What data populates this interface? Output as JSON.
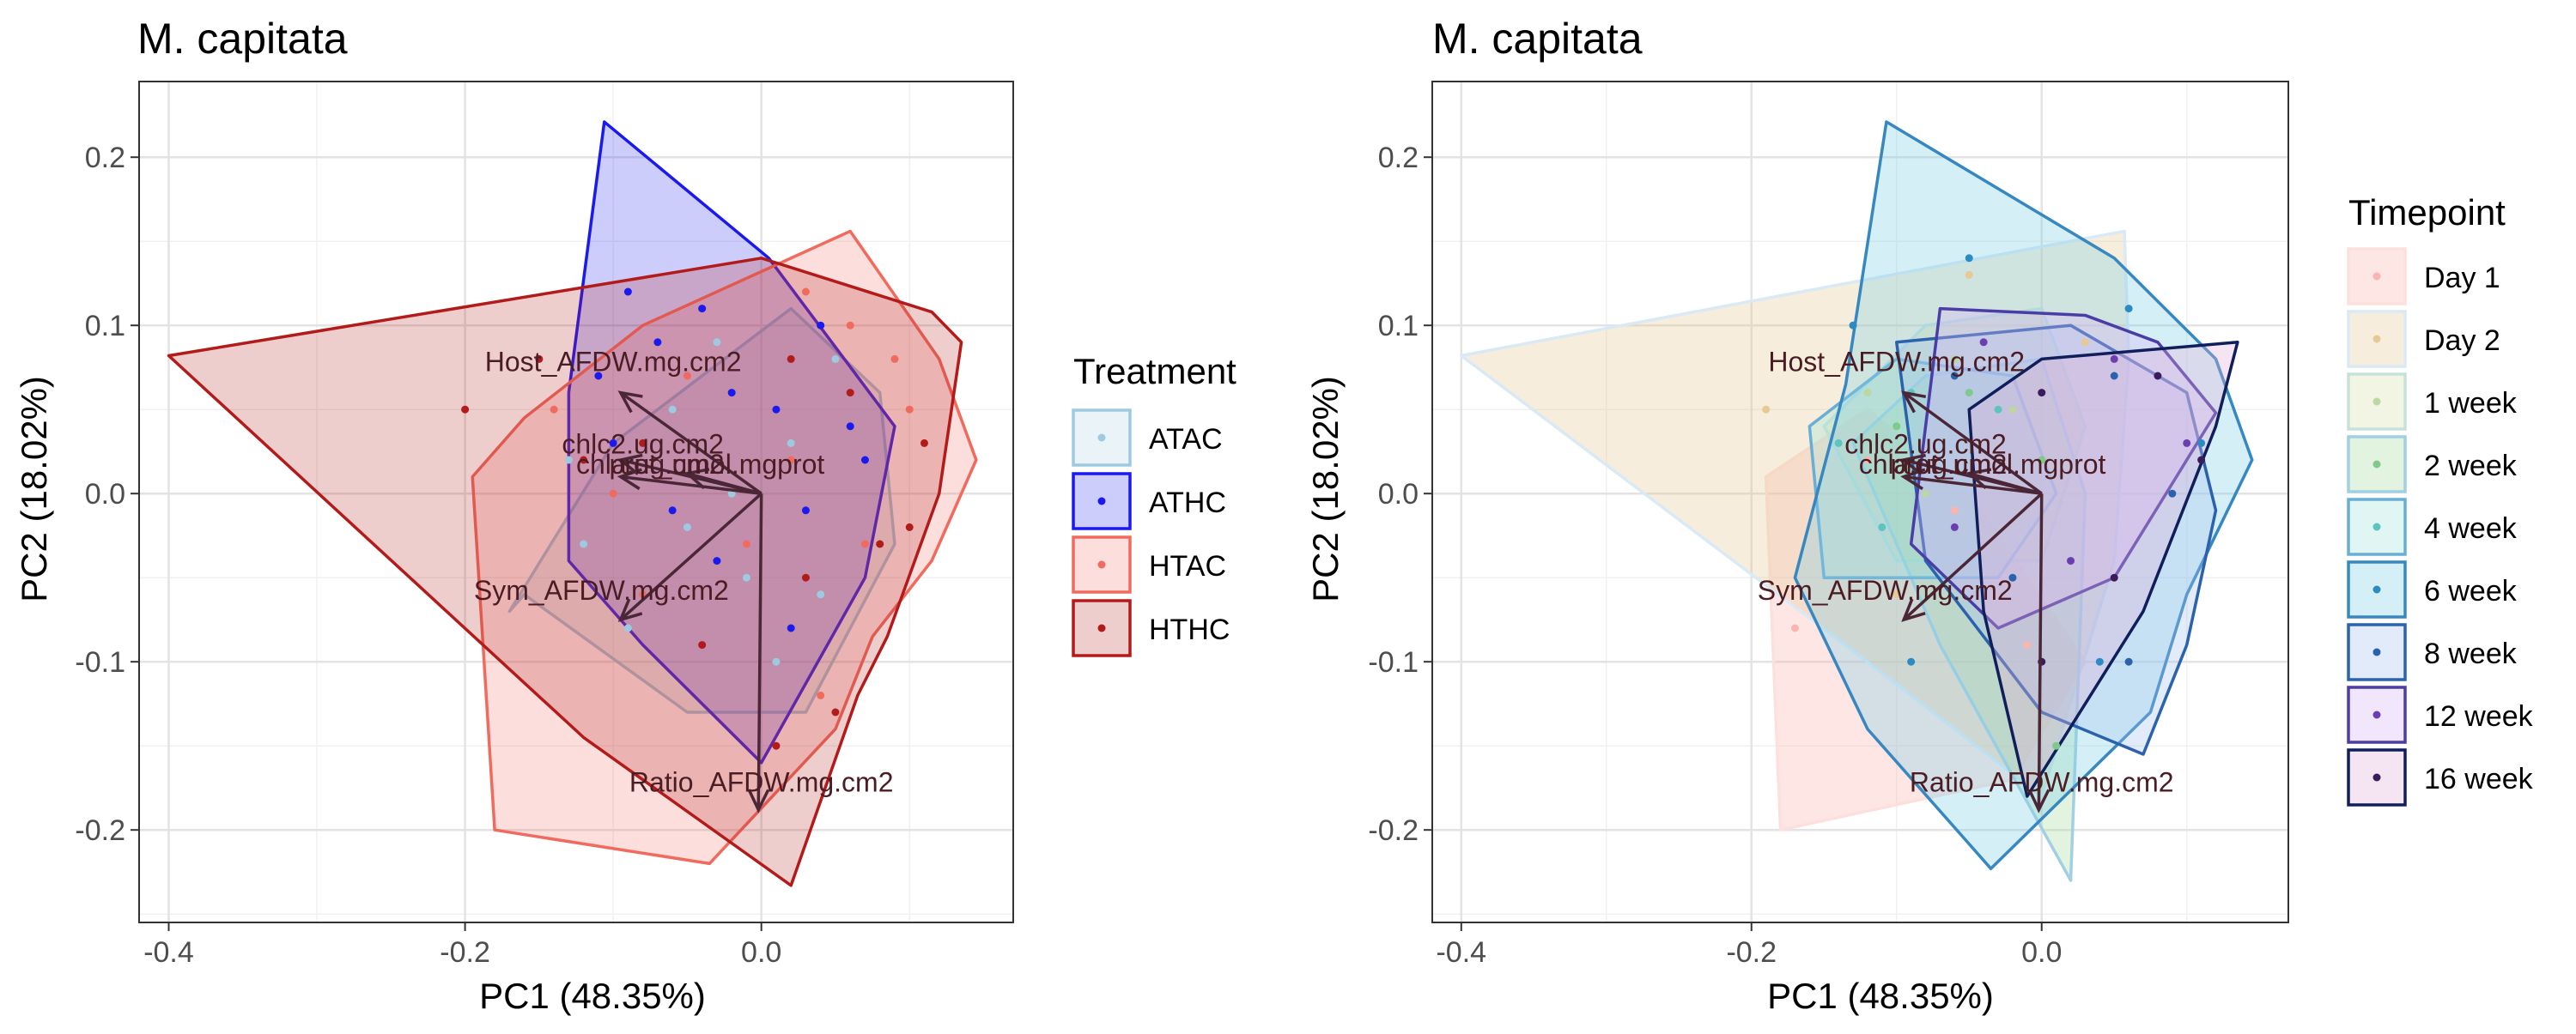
{
  "chart_data": [
    {
      "type": "scatter",
      "title": "M. capitata",
      "xlabel": "PC1 (48.35%)",
      "ylabel": "PC2 (18.02%)",
      "xlim": [
        -0.42,
        0.17
      ],
      "ylim": [
        -0.255,
        0.245
      ],
      "x_ticks": [
        -0.4,
        -0.2,
        0.0
      ],
      "x_tick_labels": [
        "-0.4",
        "-0.2",
        "0.0"
      ],
      "y_ticks": [
        0.2,
        0.1,
        0.0,
        -0.1,
        -0.2
      ],
      "y_tick_labels": [
        "0.2",
        "0.1",
        "0.0",
        "-0.1",
        "-0.2"
      ],
      "grid": true,
      "legend_title": "Treatment",
      "legend_position": "right",
      "hull_series": [
        {
          "name": "ATAC",
          "color": "#9ecae1",
          "hull": [
            [
              -0.17,
              -0.07
            ],
            [
              -0.1,
              0.03
            ],
            [
              0.02,
              0.11
            ],
            [
              0.08,
              0.06
            ],
            [
              0.09,
              -0.03
            ],
            [
              0.03,
              -0.13
            ],
            [
              -0.05,
              -0.13
            ],
            [
              -0.16,
              -0.06
            ]
          ]
        },
        {
          "name": "ATHC",
          "color": "#1a1aee",
          "hull": [
            [
              -0.13,
              0.06
            ],
            [
              -0.106,
              0.221
            ],
            [
              0.005,
              0.14
            ],
            [
              0.09,
              0.04
            ],
            [
              0.07,
              -0.05
            ],
            [
              0.0,
              -0.16
            ],
            [
              -0.08,
              -0.09
            ],
            [
              -0.13,
              -0.04
            ]
          ]
        },
        {
          "name": "HTAC",
          "color": "#f06b5e",
          "hull": [
            [
              -0.195,
              0.01
            ],
            [
              -0.16,
              0.045
            ],
            [
              -0.08,
              0.1
            ],
            [
              0.06,
              0.156
            ],
            [
              0.12,
              0.08
            ],
            [
              0.145,
              0.02
            ],
            [
              0.115,
              -0.04
            ],
            [
              0.075,
              -0.085
            ],
            [
              0.05,
              -0.14
            ],
            [
              -0.035,
              -0.22
            ],
            [
              -0.18,
              -0.2
            ]
          ]
        },
        {
          "name": "HTHC",
          "color": "#b31b1b",
          "hull": [
            [
              -0.4,
              0.082
            ],
            [
              0.0,
              0.14
            ],
            [
              0.115,
              0.108
            ],
            [
              0.135,
              0.09
            ],
            [
              0.12,
              0.0
            ],
            [
              0.085,
              -0.085
            ],
            [
              0.065,
              -0.12
            ],
            [
              0.02,
              -0.233
            ],
            [
              -0.12,
              -0.145
            ]
          ]
        }
      ],
      "points": {
        "ATAC": [
          [
            -0.13,
            0.02
          ],
          [
            -0.06,
            0.05
          ],
          [
            -0.05,
            -0.02
          ],
          [
            -0.03,
            0.09
          ],
          [
            -0.01,
            -0.05
          ],
          [
            0.02,
            0.03
          ],
          [
            0.04,
            -0.06
          ],
          [
            -0.09,
            -0.08
          ],
          [
            -0.12,
            -0.03
          ],
          [
            0.05,
            0.08
          ],
          [
            -0.02,
            0.0
          ],
          [
            0.01,
            -0.1
          ]
        ],
        "ATHC": [
          [
            -0.11,
            0.07
          ],
          [
            -0.09,
            0.12
          ],
          [
            -0.07,
            0.09
          ],
          [
            -0.04,
            0.11
          ],
          [
            0.01,
            0.05
          ],
          [
            0.03,
            -0.01
          ],
          [
            0.06,
            0.04
          ],
          [
            -0.06,
            -0.01
          ],
          [
            -0.03,
            -0.04
          ],
          [
            0.02,
            -0.08
          ],
          [
            0.07,
            0.02
          ],
          [
            -0.1,
            0.03
          ],
          [
            0.04,
            0.1
          ],
          [
            -0.02,
            0.06
          ]
        ],
        "HTAC": [
          [
            -0.14,
            0.05
          ],
          [
            -0.1,
            0.0
          ],
          [
            -0.05,
            0.07
          ],
          [
            0.03,
            0.12
          ],
          [
            0.07,
            -0.03
          ],
          [
            0.1,
            0.05
          ],
          [
            0.04,
            -0.12
          ],
          [
            -0.08,
            -0.06
          ],
          [
            0.09,
            0.08
          ],
          [
            0.02,
            0.02
          ],
          [
            -0.01,
            -0.03
          ],
          [
            0.06,
            0.1
          ]
        ],
        "HTHC": [
          [
            -0.2,
            0.05
          ],
          [
            -0.15,
            0.08
          ],
          [
            -0.08,
            0.03
          ],
          [
            0.02,
            0.08
          ],
          [
            0.06,
            0.06
          ],
          [
            0.11,
            0.03
          ],
          [
            0.08,
            -0.03
          ],
          [
            0.03,
            -0.05
          ],
          [
            -0.04,
            -0.09
          ],
          [
            0.01,
            -0.15
          ],
          [
            0.05,
            -0.13
          ],
          [
            0.1,
            -0.02
          ],
          [
            -0.12,
            0.02
          ]
        ]
      },
      "loadings": [
        {
          "label": "Host_AFDW.mg.cm2",
          "end": [
            -0.095,
            0.06
          ],
          "label_pos": [
            -0.1,
            0.078
          ]
        },
        {
          "label": "chlc2.ug.cm2",
          "end": [
            -0.095,
            0.02
          ],
          "label_pos": [
            -0.08,
            0.029
          ]
        },
        {
          "label": "chla.ug.cm2",
          "end": [
            -0.095,
            0.01
          ],
          "label_pos": [
            -0.075,
            0.017
          ]
        },
        {
          "label": "prot_umol.mgprot",
          "end": [
            -0.05,
            0.012
          ],
          "label_pos": [
            -0.03,
            0.017
          ]
        },
        {
          "label": "Sym_AFDW.mg.cm2",
          "end": [
            -0.095,
            -0.075
          ],
          "label_pos": [
            -0.108,
            -0.058
          ]
        },
        {
          "label": "Ratio_AFDW.mg.cm2",
          "end": [
            -0.002,
            -0.188
          ],
          "label_pos": [
            0.0,
            -0.172
          ]
        }
      ]
    },
    {
      "type": "scatter",
      "title": "M. capitata",
      "xlabel": "PC1 (48.35%)",
      "ylabel": "PC2 (18.02%)",
      "xlim": [
        -0.42,
        0.17
      ],
      "ylim": [
        -0.255,
        0.245
      ],
      "x_ticks": [
        -0.4,
        -0.2,
        0.0
      ],
      "x_tick_labels": [
        "-0.4",
        "-0.2",
        "0.0"
      ],
      "y_ticks": [
        0.2,
        0.1,
        0.0,
        -0.1,
        -0.2
      ],
      "y_tick_labels": [
        "0.2",
        "0.1",
        "0.0",
        "-0.1",
        "-0.2"
      ],
      "grid": true,
      "legend_title": "Timepoint",
      "legend_position": "right",
      "hull_series": [
        {
          "name": "Day 1",
          "fill": "#fbb4ae",
          "stroke": "#fde0dd",
          "hull": [
            [
              -0.19,
              0.01
            ],
            [
              -0.12,
              0.05
            ],
            [
              -0.05,
              0.0
            ],
            [
              0.03,
              -0.1
            ],
            [
              -0.02,
              -0.17
            ],
            [
              -0.18,
              -0.2
            ]
          ]
        },
        {
          "name": "Day 2",
          "fill": "#e6c995",
          "stroke": "#d9e9f6",
          "hull": [
            [
              -0.4,
              0.082
            ],
            [
              0.057,
              0.156
            ],
            [
              0.06,
              0.08
            ],
            [
              0.05,
              -0.04
            ],
            [
              0.0,
              -0.18
            ],
            [
              -0.12,
              -0.1
            ]
          ]
        },
        {
          "name": "1 week",
          "fill": "#d9e2a9",
          "stroke": "#c7e2d9",
          "hull": [
            [
              -0.15,
              0.04
            ],
            [
              -0.08,
              0.1
            ],
            [
              0.0,
              0.11
            ],
            [
              0.03,
              0.04
            ],
            [
              0.0,
              -0.04
            ],
            [
              -0.1,
              -0.04
            ]
          ]
        },
        {
          "name": "2 week",
          "fill": "#a6dba0",
          "stroke": "#a1cfe3",
          "hull": [
            [
              -0.13,
              0.03
            ],
            [
              -0.08,
              0.07
            ],
            [
              0.0,
              0.08
            ],
            [
              0.03,
              0.0
            ],
            [
              0.02,
              -0.23
            ],
            [
              -0.07,
              -0.09
            ]
          ]
        },
        {
          "name": "4 week",
          "fill": "#9ee3d8",
          "stroke": "#6aaed6",
          "hull": [
            [
              -0.16,
              0.04
            ],
            [
              -0.1,
              0.08
            ],
            [
              -0.02,
              0.07
            ],
            [
              0.01,
              0.0
            ],
            [
              -0.03,
              -0.05
            ],
            [
              -0.15,
              -0.05
            ]
          ]
        },
        {
          "name": "6 week",
          "fill": "#7fcde6",
          "stroke": "#3787c0",
          "hull": [
            [
              -0.135,
              0.065
            ],
            [
              -0.107,
              0.221
            ],
            [
              0.05,
              0.14
            ],
            [
              0.12,
              0.08
            ],
            [
              0.145,
              0.02
            ],
            [
              0.1,
              -0.06
            ],
            [
              0.075,
              -0.13
            ],
            [
              -0.035,
              -0.223
            ],
            [
              -0.12,
              -0.14
            ],
            [
              -0.17,
              -0.05
            ]
          ]
        },
        {
          "name": "8 week",
          "fill": "#a7c3f0",
          "stroke": "#2b62ad",
          "hull": [
            [
              -0.1,
              0.09
            ],
            [
              0.02,
              0.1
            ],
            [
              0.1,
              0.06
            ],
            [
              0.12,
              -0.01
            ],
            [
              0.1,
              -0.09
            ],
            [
              0.07,
              -0.155
            ],
            [
              0.0,
              -0.13
            ],
            [
              -0.08,
              -0.04
            ]
          ]
        },
        {
          "name": "12 week",
          "fill": "#d7b3f5",
          "stroke": "#4a3da6",
          "hull": [
            [
              -0.07,
              0.11
            ],
            [
              0.03,
              0.106
            ],
            [
              0.08,
              0.09
            ],
            [
              0.12,
              0.048
            ],
            [
              0.05,
              -0.05
            ],
            [
              -0.03,
              -0.08
            ],
            [
              -0.09,
              -0.03
            ]
          ]
        },
        {
          "name": "16 week",
          "fill": "#e2b1d8",
          "stroke": "#101f5c",
          "hull": [
            [
              -0.05,
              0.05
            ],
            [
              0.0,
              0.08
            ],
            [
              0.135,
              0.09
            ],
            [
              0.12,
              0.04
            ],
            [
              0.07,
              -0.07
            ],
            [
              -0.01,
              -0.18
            ],
            [
              -0.04,
              -0.07
            ]
          ]
        }
      ],
      "points": {
        "Day 1": [
          [
            -0.17,
            -0.08
          ],
          [
            -0.12,
            0.02
          ],
          [
            -0.06,
            -0.01
          ],
          [
            -0.01,
            -0.09
          ]
        ],
        "Day 2": [
          [
            -0.19,
            0.05
          ],
          [
            -0.05,
            0.13
          ],
          [
            0.03,
            0.09
          ],
          [
            -0.1,
            -0.06
          ]
        ],
        "1 week": [
          [
            -0.12,
            0.06
          ],
          [
            -0.06,
            0.08
          ],
          [
            -0.02,
            0.05
          ],
          [
            -0.08,
            0.0
          ]
        ],
        "2 week": [
          [
            -0.1,
            0.04
          ],
          [
            -0.05,
            0.06
          ],
          [
            0.0,
            0.02
          ],
          [
            0.01,
            -0.15
          ]
        ],
        "4 week": [
          [
            -0.14,
            0.03
          ],
          [
            -0.09,
            0.06
          ],
          [
            -0.03,
            0.05
          ],
          [
            -0.11,
            -0.02
          ]
        ],
        "6 week": [
          [
            -0.13,
            0.1
          ],
          [
            -0.05,
            0.14
          ],
          [
            0.06,
            0.11
          ],
          [
            0.11,
            0.03
          ],
          [
            -0.09,
            -0.1
          ],
          [
            0.04,
            -0.1
          ]
        ],
        "8 week": [
          [
            -0.06,
            0.07
          ],
          [
            0.05,
            0.07
          ],
          [
            0.09,
            0.0
          ],
          [
            0.06,
            -0.1
          ],
          [
            -0.02,
            -0.05
          ]
        ],
        "12 week": [
          [
            -0.04,
            0.09
          ],
          [
            0.05,
            0.08
          ],
          [
            0.1,
            0.03
          ],
          [
            0.02,
            -0.04
          ],
          [
            -0.06,
            -0.02
          ]
        ],
        "16 week": [
          [
            0.0,
            0.06
          ],
          [
            0.08,
            0.07
          ],
          [
            0.11,
            0.02
          ],
          [
            0.05,
            -0.05
          ],
          [
            0.0,
            -0.1
          ]
        ]
      },
      "loadings": [
        {
          "label": "Host_AFDW.mg.cm2",
          "end": [
            -0.095,
            0.06
          ],
          "label_pos": [
            -0.1,
            0.078
          ]
        },
        {
          "label": "chlc2.ug.cm2",
          "end": [
            -0.095,
            0.02
          ],
          "label_pos": [
            -0.08,
            0.029
          ]
        },
        {
          "label": "chla.ug.cm2",
          "end": [
            -0.095,
            0.01
          ],
          "label_pos": [
            -0.075,
            0.017
          ]
        },
        {
          "label": "prot_umol.mgprot",
          "end": [
            -0.05,
            0.012
          ],
          "label_pos": [
            -0.03,
            0.017
          ]
        },
        {
          "label": "Sym_AFDW.mg.cm2",
          "end": [
            -0.095,
            -0.075
          ],
          "label_pos": [
            -0.108,
            -0.058
          ]
        },
        {
          "label": "Ratio_AFDW.mg.cm2",
          "end": [
            -0.002,
            -0.188
          ],
          "label_pos": [
            0.0,
            -0.172
          ]
        }
      ]
    }
  ]
}
